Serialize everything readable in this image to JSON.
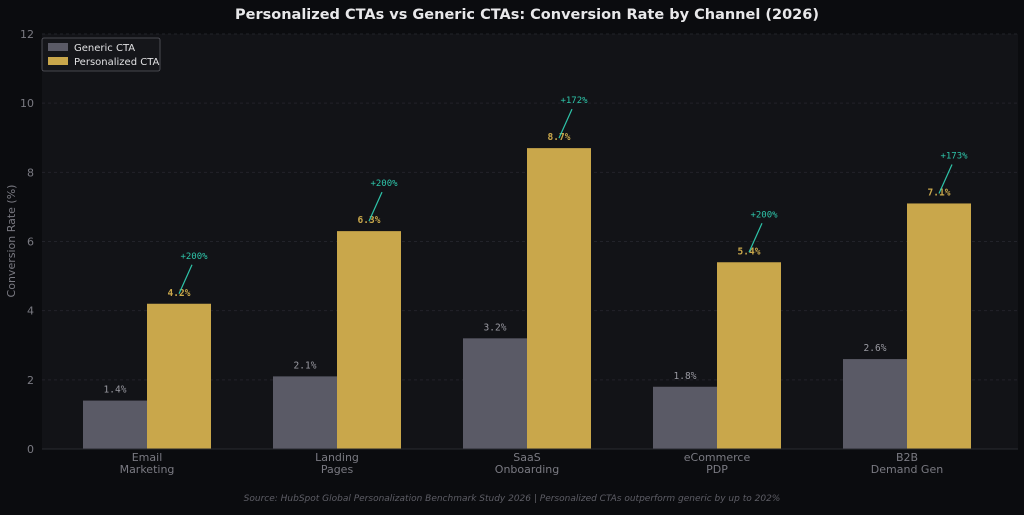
{
  "colors": {
    "background": "#0b0c0f",
    "plot_background": "#121317",
    "generic": "#5a5a66",
    "personalized": "#c9a74b",
    "uplift": "#2ec4a9",
    "value_label": "#9a9aa2",
    "axis_text": "#7a7a82",
    "title": "#e8e8ea"
  },
  "chart_data": {
    "type": "bar",
    "title": "Personalized CTAs vs Generic CTAs: Conversion Rate by Channel (2026)",
    "xlabel": "",
    "ylabel": "Conversion Rate (%)",
    "ylim": [
      0,
      12
    ],
    "yticks": [
      0,
      2,
      4,
      6,
      8,
      10,
      12
    ],
    "grid": true,
    "legend_position": "top-left",
    "categories": [
      [
        "Email",
        "Marketing"
      ],
      [
        "Landing",
        "Pages"
      ],
      [
        "SaaS",
        "Onboarding"
      ],
      [
        "eCommerce",
        "PDP"
      ],
      [
        "B2B",
        "Demand Gen"
      ]
    ],
    "series": [
      {
        "name": "Generic CTA",
        "values": [
          1.4,
          2.1,
          3.2,
          1.8,
          2.6
        ],
        "labels": [
          "1.4%",
          "2.1%",
          "3.2%",
          "1.8%",
          "2.6%"
        ]
      },
      {
        "name": "Personalized CTA",
        "values": [
          4.2,
          6.3,
          8.7,
          5.4,
          7.1
        ],
        "labels": [
          "4.2%",
          "6.3%",
          "8.7%",
          "5.4%",
          "7.1%"
        ]
      }
    ],
    "uplift_labels": [
      "+200%",
      "+200%",
      "+172%",
      "+200%",
      "+173%"
    ],
    "footnote": "Source: HubSpot Global Personalization Benchmark Study 2026  |  Personalized CTAs outperform generic by up to 202%"
  }
}
